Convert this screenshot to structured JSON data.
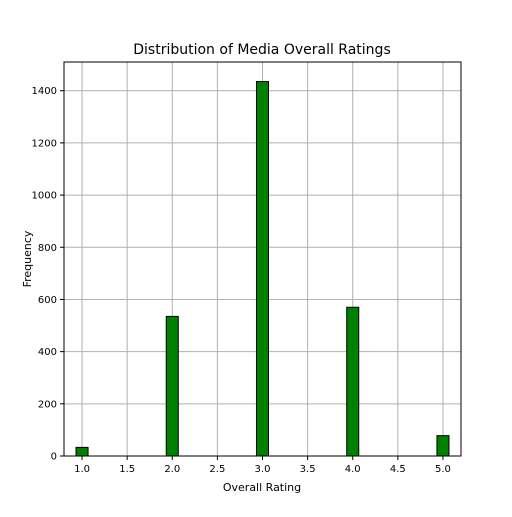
{
  "chart_data": {
    "type": "bar",
    "title": "Distribution of Media Overall Ratings",
    "xlabel": "Overall Rating",
    "ylabel": "Frequency",
    "xlim": [
      0.8,
      5.2
    ],
    "ylim": [
      0,
      1510
    ],
    "grid": true,
    "bar_color": "#008000",
    "bar_edge_color": "#000000",
    "bin_width": 0.13333,
    "x_ticks": [
      1.0,
      1.5,
      2.0,
      2.5,
      3.0,
      3.5,
      4.0,
      4.5,
      5.0
    ],
    "x_tick_labels": [
      "1.0",
      "1.5",
      "2.0",
      "2.5",
      "3.0",
      "3.5",
      "4.0",
      "4.5",
      "5.0"
    ],
    "y_ticks": [
      0,
      200,
      400,
      600,
      800,
      1000,
      1200,
      1400
    ],
    "y_tick_labels": [
      "0",
      "200",
      "400",
      "600",
      "800",
      "1000",
      "1200",
      "1400"
    ],
    "bins": [
      {
        "x": 1.0,
        "value": 33
      },
      {
        "x": 2.0,
        "value": 535
      },
      {
        "x": 3.0,
        "value": 1435
      },
      {
        "x": 4.0,
        "value": 570
      },
      {
        "x": 5.0,
        "value": 78
      }
    ]
  }
}
